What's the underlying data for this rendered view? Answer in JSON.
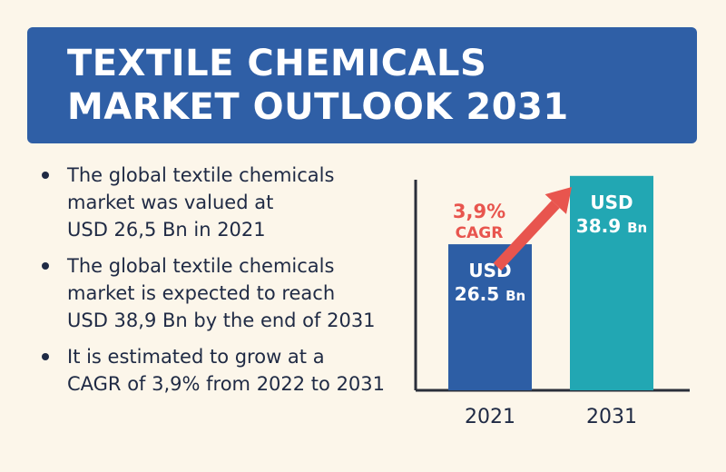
{
  "title": {
    "lines": [
      "TEXTILE CHEMICALS",
      "MARKET OUTLOOK 2031"
    ]
  },
  "bullets": [
    {
      "lines": [
        "The global textile chemicals",
        "market was valued at",
        "USD 26,5 Bn in 2021"
      ]
    },
    {
      "lines": [
        "The global textile chemicals",
        "market is expected to reach",
        "USD 38,9 Bn by the end of 2031"
      ]
    },
    {
      "lines": [
        "It is estimated to grow at a",
        "CAGR of 3,9% from 2022 to 2031"
      ]
    }
  ],
  "colors": {
    "banner": "#2f5fa6",
    "bar_2021": "#2d5ea5",
    "bar_2031": "#22a7b3",
    "arrow": "#e8554e",
    "text": "#1f2a44"
  },
  "chart_data": {
    "type": "bar",
    "title": "",
    "xlabel": "",
    "ylabel": "",
    "categories": [
      "2021",
      "2031"
    ],
    "values": [
      26.5,
      38.9
    ],
    "ylim": [
      0,
      41.5
    ],
    "grid": false,
    "bar_labels": [
      {
        "currency": "USD",
        "value": "26.5",
        "unit": "Bn"
      },
      {
        "currency": "USD",
        "value": "38.9",
        "unit": "Bn"
      }
    ],
    "annotation": {
      "value": "3,9%",
      "label": "CAGR"
    }
  }
}
